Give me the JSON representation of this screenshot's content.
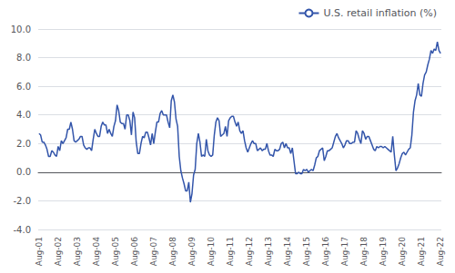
{
  "chart_data": {
    "type": "line",
    "categories": [
      "Aug-01",
      null,
      null,
      null,
      null,
      null,
      null,
      null,
      null,
      null,
      null,
      null,
      "Aug-02",
      null,
      null,
      null,
      null,
      null,
      null,
      null,
      null,
      null,
      null,
      null,
      "Aug-03",
      null,
      null,
      null,
      null,
      null,
      null,
      null,
      null,
      null,
      null,
      null,
      "Aug-04",
      null,
      null,
      null,
      null,
      null,
      null,
      null,
      null,
      null,
      null,
      null,
      "Aug-05",
      null,
      null,
      null,
      null,
      null,
      null,
      null,
      null,
      null,
      null,
      null,
      "Aug-06",
      null,
      null,
      null,
      null,
      null,
      null,
      null,
      null,
      null,
      null,
      null,
      "Aug-07",
      null,
      null,
      null,
      null,
      null,
      null,
      null,
      null,
      null,
      null,
      null,
      "Aug-08",
      null,
      null,
      null,
      null,
      null,
      null,
      null,
      null,
      null,
      null,
      null,
      "Aug-09",
      null,
      null,
      null,
      null,
      null,
      null,
      null,
      null,
      null,
      null,
      null,
      "Aug-10",
      null,
      null,
      null,
      null,
      null,
      null,
      null,
      null,
      null,
      null,
      null,
      "Aug-11",
      null,
      null,
      null,
      null,
      null,
      null,
      null,
      null,
      null,
      null,
      null,
      "Aug-12",
      null,
      null,
      null,
      null,
      null,
      null,
      null,
      null,
      null,
      null,
      null,
      "Aug-13",
      null,
      null,
      null,
      null,
      null,
      null,
      null,
      null,
      null,
      null,
      null,
      "Aug-14",
      null,
      null,
      null,
      null,
      null,
      null,
      null,
      null,
      null,
      null,
      null,
      "Aug-15",
      null,
      null,
      null,
      null,
      null,
      null,
      null,
      null,
      null,
      null,
      null,
      "Aug-16",
      null,
      null,
      null,
      null,
      null,
      null,
      null,
      null,
      null,
      null,
      null,
      "Aug-17",
      null,
      null,
      null,
      null,
      null,
      null,
      null,
      null,
      null,
      null,
      null,
      "Aug-18",
      null,
      null,
      null,
      null,
      null,
      null,
      null,
      null,
      null,
      null,
      null,
      "Aug-19",
      null,
      null,
      null,
      null,
      null,
      null,
      null,
      null,
      null,
      null,
      null,
      "Aug-20",
      null,
      null,
      null,
      null,
      null,
      null,
      null,
      null,
      null,
      null,
      null,
      "Aug-21",
      null,
      null,
      null,
      null,
      null,
      null,
      null,
      null,
      null,
      null,
      null,
      "Aug-22"
    ],
    "series": [
      {
        "name": "U.S. retail inflation (%)",
        "color": "#3355aa",
        "values": [
          2.7,
          2.6,
          2.1,
          2.1,
          1.9,
          1.6,
          1.1,
          1.1,
          1.5,
          1.4,
          1.2,
          1.1,
          1.8,
          1.5,
          2.2,
          2.0,
          2.2,
          2.4,
          3.0,
          3.0,
          3.5,
          3.0,
          2.2,
          2.1,
          2.2,
          2.3,
          2.5,
          2.5,
          1.9,
          1.7,
          1.6,
          1.7,
          1.7,
          1.5,
          2.3,
          3.0,
          2.7,
          2.5,
          2.5,
          3.2,
          3.5,
          3.3,
          3.3,
          2.7,
          3.0,
          2.7,
          2.5,
          3.2,
          3.6,
          4.7,
          4.3,
          3.5,
          3.4,
          3.4,
          3.0,
          4.0,
          4.0,
          3.6,
          2.6,
          4.2,
          3.8,
          2.1,
          1.3,
          1.3,
          2.0,
          2.5,
          2.4,
          2.8,
          2.8,
          2.4,
          1.9,
          2.7,
          2.0,
          2.8,
          3.5,
          3.5,
          4.1,
          4.3,
          4.0,
          4.0,
          4.0,
          3.5,
          3.1,
          5.0,
          5.4,
          4.9,
          3.7,
          3.2,
          1.1,
          0.1,
          -0.4,
          -0.8,
          -1.3,
          -1.3,
          -0.7,
          -2.1,
          -1.5,
          -0.2,
          0.2,
          2.0,
          2.7,
          2.1,
          1.1,
          1.2,
          1.1,
          2.3,
          1.5,
          1.2,
          1.1,
          1.2,
          2.6,
          3.5,
          3.8,
          3.6,
          2.5,
          2.6,
          2.7,
          3.2,
          2.5,
          3.6,
          3.8,
          3.9,
          3.9,
          3.5,
          3.2,
          3.5,
          2.9,
          2.7,
          2.9,
          2.2,
          1.7,
          1.4,
          1.7,
          2.0,
          2.2,
          2.0,
          2.0,
          1.5,
          1.6,
          1.7,
          1.5,
          1.6,
          1.6,
          2.0,
          1.5,
          1.2,
          1.2,
          1.1,
          1.6,
          1.5,
          1.5,
          1.6,
          2.0,
          2.1,
          1.7,
          2.0,
          1.7,
          1.7,
          1.3,
          1.7,
          0.8,
          -0.1,
          -0.1,
          0.0,
          -0.1,
          -0.1,
          0.2,
          0.1,
          0.2,
          0.0,
          0.1,
          0.2,
          0.1,
          0.5,
          1.0,
          1.1,
          1.5,
          1.6,
          1.7,
          0.8,
          1.1,
          1.5,
          1.5,
          1.6,
          1.7,
          2.1,
          2.5,
          2.7,
          2.4,
          2.2,
          2.0,
          1.7,
          1.9,
          2.2,
          2.2,
          2.0,
          2.0,
          2.1,
          2.1,
          2.9,
          2.7,
          2.3,
          2.0,
          2.9,
          2.7,
          2.3,
          2.5,
          2.5,
          2.2,
          1.9,
          1.6,
          1.5,
          1.8,
          1.7,
          1.8,
          1.8,
          1.7,
          1.8,
          1.7,
          1.6,
          1.5,
          1.4,
          2.5,
          1.2,
          0.1,
          0.3,
          0.6,
          1.0,
          1.3,
          1.4,
          1.2,
          1.4,
          1.6,
          1.7,
          2.6,
          4.2,
          5.0,
          5.4,
          6.2,
          5.4,
          5.3,
          6.2,
          6.8,
          7.0,
          7.5,
          7.9,
          8.5,
          8.3,
          8.6,
          8.5,
          9.1,
          8.5,
          8.3
        ]
      }
    ],
    "ylim": [
      -4.0,
      10.0
    ],
    "yticks": [
      {
        "value": -4.0,
        "label": "-4.0"
      },
      {
        "value": -2.0,
        "label": "-2.0"
      },
      {
        "value": 0.0,
        "label": "0.0"
      },
      {
        "value": 2.0,
        "label": "2.0"
      },
      {
        "value": 4.0,
        "label": "4.0"
      },
      {
        "value": 6.0,
        "label": "6.0"
      },
      {
        "value": 8.0,
        "label": "8.0"
      },
      {
        "value": 10.0,
        "label": "10.0"
      }
    ],
    "grid": true,
    "legend": "upper right"
  }
}
